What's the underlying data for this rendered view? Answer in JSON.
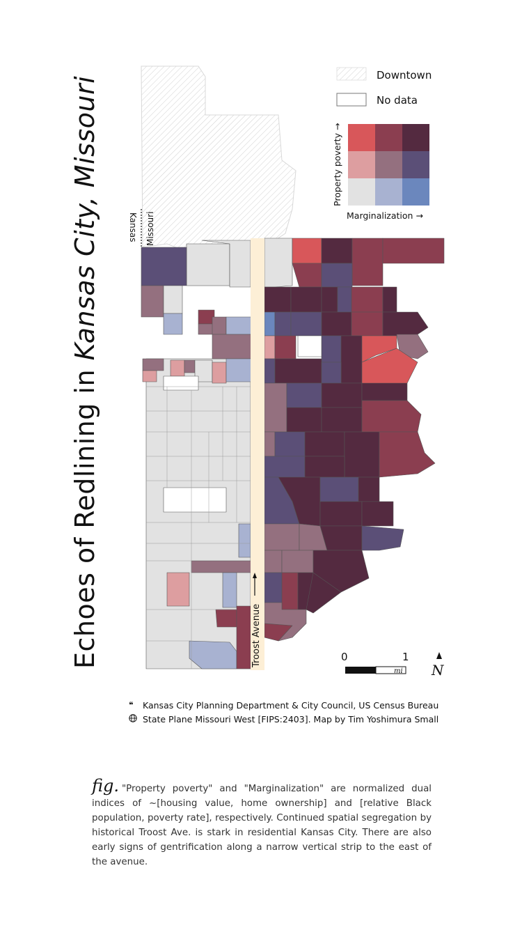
{
  "title": {
    "part1": "Echoes of Redlining in ",
    "part2": "Kansas City,  Missouri"
  },
  "legend": {
    "downtown_label": "Downtown",
    "nodata_label": "No data",
    "y_axis_label": "Property poverty →",
    "x_axis_label": "Marginalization →",
    "colors": {
      "r0c0": "#d8575a",
      "r0c1": "#8b3e50",
      "r0c2": "#542a40",
      "r1c0": "#dd9ea0",
      "r1c1": "#94707f",
      "r1c2": "#5b4f77",
      "r2c0": "#e2e2e2",
      "r2c1": "#a8b2d1",
      "r2c2": "#6b87bd"
    }
  },
  "map": {
    "state_kansas": "Kansas",
    "state_missouri": "Missouri",
    "street_label": "Troost Avenue",
    "scale_zero": "0",
    "scale_one": "1",
    "scale_unit": "mi",
    "north_label": "N",
    "street_color": "#fdefd6",
    "no_data_color": "#ffffff",
    "downtown_hatch_color": "#cfcfcf"
  },
  "credits": {
    "sources": "Kansas City Planning Department & City Council,  US Census Bureau",
    "projection": "State Plane Missouri West [FIPS:2403].   Map by Tim Yoshimura Small",
    "source_icon": "quote-icon",
    "projection_icon": "globe-icon"
  },
  "caption": {
    "fig": "fig.",
    "text": "\"Property poverty\" and \"Marginalization\" are normalized dual indices of ~[housing value,  home ownership] and [relative Black population, poverty rate],  respectively. Continued spatial segregation by historical Troost Ave.  is stark in residential Kansas City.  There are also early signs of gentrification along a narrow vertical strip to the east of the avenue."
  }
}
